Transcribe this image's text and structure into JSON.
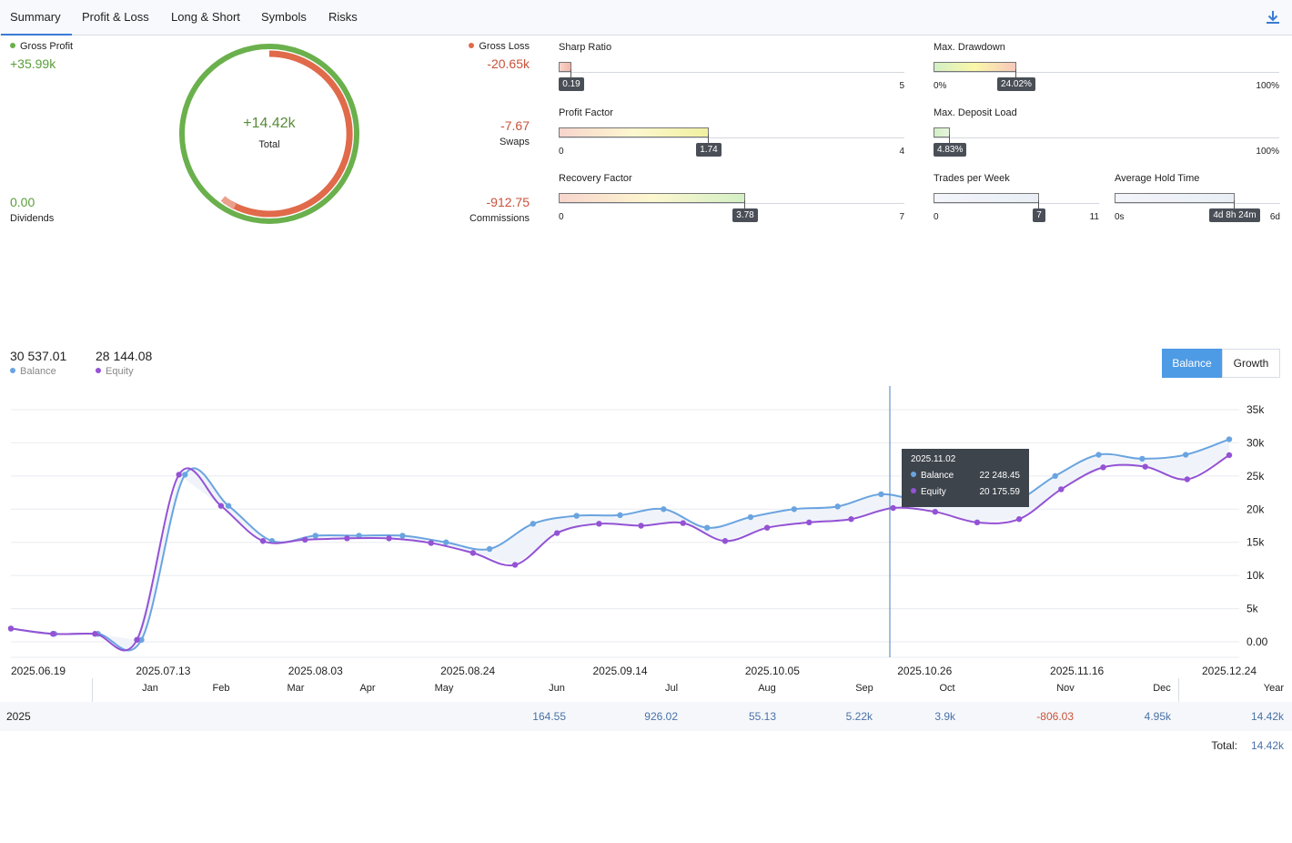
{
  "tabs": [
    {
      "label": "Summary",
      "active": true
    },
    {
      "label": "Profit & Loss"
    },
    {
      "label": "Long & Short"
    },
    {
      "label": "Symbols"
    },
    {
      "label": "Risks"
    }
  ],
  "summary": {
    "gross_profit_label": "Gross Profit",
    "gross_profit_value": "+35.99k",
    "gross_loss_label": "Gross Loss",
    "gross_loss_value": "-20.65k",
    "total_value": "+14.42k",
    "total_label": "Total",
    "swaps_value": "-7.67",
    "swaps_label": "Swaps",
    "dividends_value": "0.00",
    "dividends_label": "Dividends",
    "commissions_value": "-912.75",
    "commissions_label": "Commissions",
    "colors": {
      "profit": "#6ab04c",
      "loss": "#e06a4a"
    }
  },
  "gauges": {
    "sharp": {
      "title": "Sharp Ratio",
      "value": 0.19,
      "badge": "0.19",
      "min": "0",
      "max": "5",
      "min_n": 0,
      "max_n": 5,
      "show_min": false
    },
    "profit_factor": {
      "title": "Profit Factor",
      "value": 1.74,
      "badge": "1.74",
      "min": "0",
      "max": "4",
      "min_n": 0,
      "max_n": 4,
      "show_min": true
    },
    "recovery": {
      "title": "Recovery Factor",
      "value": 3.78,
      "badge": "3.78",
      "min": "0",
      "max": "7",
      "min_n": 0,
      "max_n": 7,
      "show_min": true
    },
    "drawdown": {
      "title": "Max. Drawdown",
      "value": 24.02,
      "badge": "24.02%",
      "min": "0%",
      "max": "100%",
      "min_n": 0,
      "max_n": 100,
      "show_min": true
    },
    "deposit_load": {
      "title": "Max. Deposit Load",
      "value": 4.83,
      "badge": "4.83%",
      "min": "0",
      "max": "100%",
      "min_n": 0,
      "max_n": 100,
      "show_min": false
    },
    "trades_week": {
      "title": "Trades per Week",
      "value": 7,
      "badge": "7",
      "min": "0",
      "max": "11",
      "min_n": 0,
      "max_n": 11,
      "show_min": true
    },
    "hold_time": {
      "title": "Average Hold Time",
      "value": 4.35,
      "badge": "4d 8h 24m",
      "min": "0s",
      "max": "6d",
      "min_n": 0,
      "max_n": 6,
      "show_min": true
    }
  },
  "chart_header": {
    "balance_value": "30 537.01",
    "balance_label": "Balance",
    "equity_value": "28 144.08",
    "equity_label": "Equity",
    "toggle_balance": "Balance",
    "toggle_growth": "Growth"
  },
  "chart_data": {
    "type": "line",
    "x_ticks": [
      "2025.06.19",
      "2025.07.13",
      "2025.08.03",
      "2025.08.24",
      "2025.09.14",
      "2025.10.05",
      "2025.10.26",
      "2025.11.16",
      "2025.12.24"
    ],
    "y_ticks": [
      "0.00",
      "5k",
      "10k",
      "15k",
      "20k",
      "25k",
      "30k",
      "35k"
    ],
    "ylim": [
      0,
      35000
    ],
    "series": [
      {
        "name": "Balance",
        "color": "#6aa4e0",
        "values": [
          2000,
          1200,
          1200,
          300,
          25200,
          20500,
          15200,
          16000,
          16000,
          16000,
          15000,
          14000,
          17800,
          19000,
          19100,
          20000,
          17200,
          18800,
          20000,
          20400,
          22248.45,
          21200,
          22000,
          21000,
          25000,
          28200,
          27600,
          28200,
          30537.01
        ]
      },
      {
        "name": "Equity",
        "color": "#9452d4",
        "values": [
          2000,
          1200,
          1200,
          300,
          25200,
          20500,
          15200,
          15400,
          15600,
          15600,
          14900,
          13400,
          11600,
          16400,
          17800,
          17500,
          17900,
          15200,
          17200,
          18000,
          18500,
          20175.59,
          19600,
          18000,
          18500,
          23000,
          26300,
          26400,
          24500,
          28144.08
        ]
      }
    ],
    "tooltip": {
      "date": "2025.11.02",
      "balance_label": "Balance",
      "balance_value": "22 248.45",
      "equity_label": "Equity",
      "equity_value": "20 175.59"
    }
  },
  "monthly_table": {
    "months": [
      "Jan",
      "Feb",
      "Mar",
      "Apr",
      "May",
      "Jun",
      "Jul",
      "Aug",
      "Sep",
      "Oct",
      "Nov",
      "Dec"
    ],
    "year_header": "Year",
    "row_year": "2025",
    "values": [
      "",
      "",
      "",
      "",
      "",
      "164.55",
      "926.02",
      "55.13",
      "5.22k",
      "3.9k",
      "-806.03",
      "4.95k"
    ],
    "year_total": "14.42k",
    "total_label": "Total:",
    "total_value": "14.42k"
  }
}
